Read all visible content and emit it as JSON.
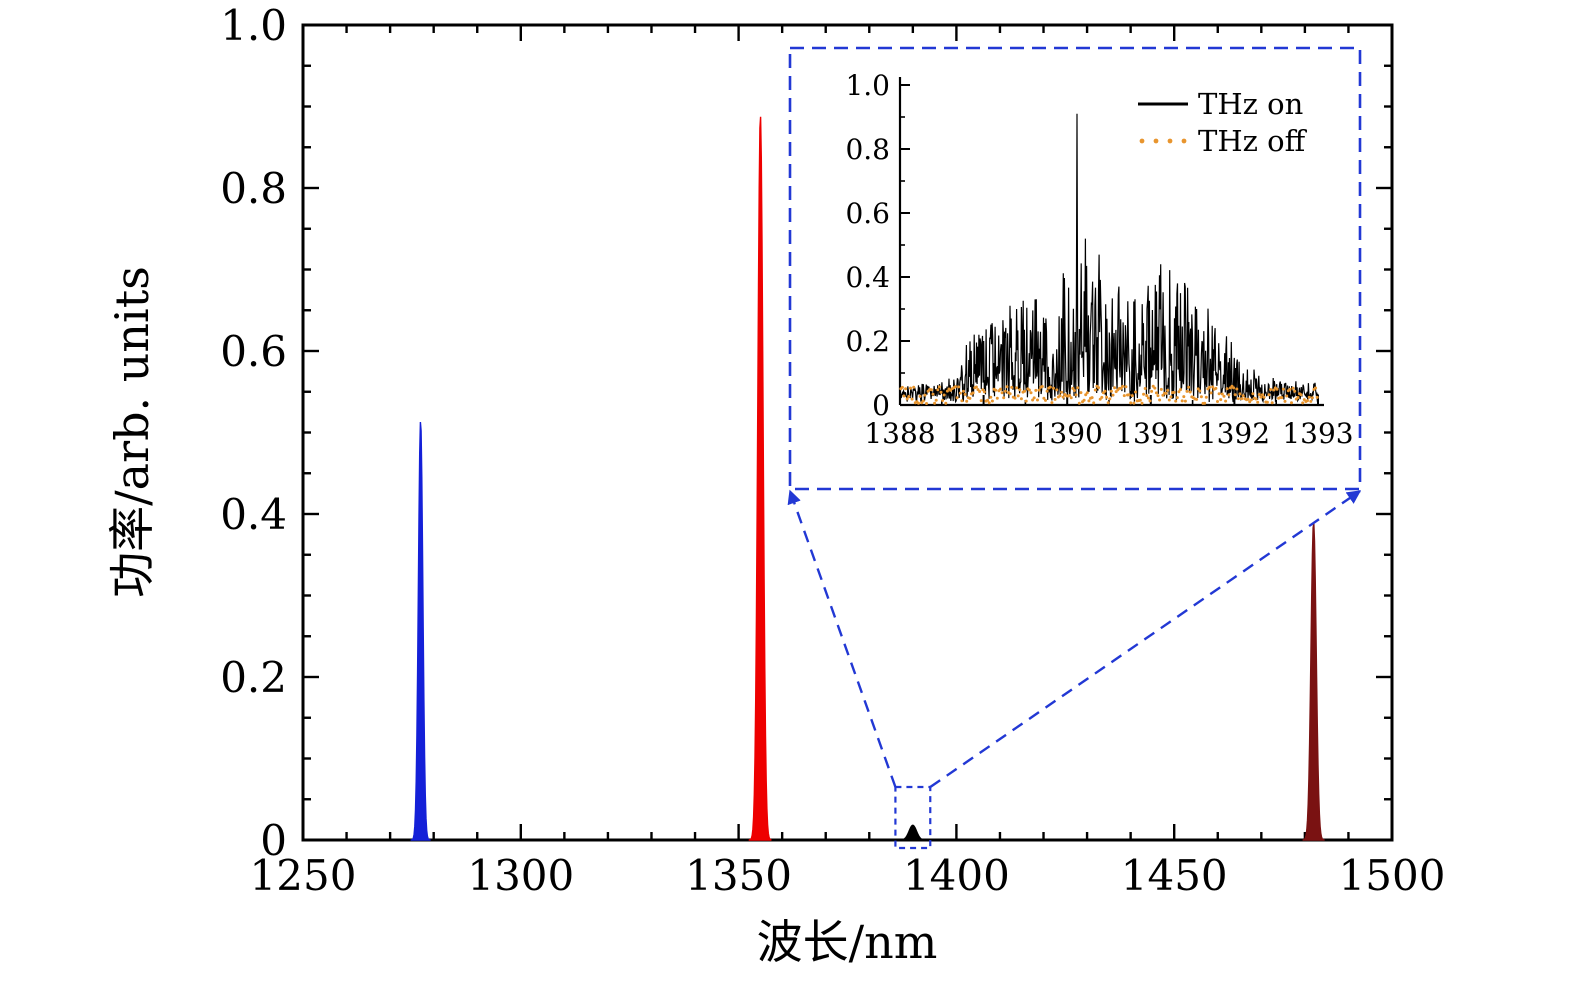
{
  "figure": {
    "background": "#ffffff",
    "description": "Optical spectrum with three strong pump/signal peaks and a weak idler peak at 1390 nm, zoomed in an inset comparing THz on/off."
  },
  "chart_data": {
    "type": "line",
    "main": {
      "xlabel": "波长/nm",
      "ylabel": "功率/arb. units",
      "xlim": [
        1250,
        1500
      ],
      "ylim": [
        0,
        1.0
      ],
      "x_ticks": {
        "values": [
          1250,
          1300,
          1350,
          1400,
          1450,
          1500
        ],
        "labels": [
          "1250",
          "1300",
          "1350",
          "1400",
          "1450",
          "1500"
        ],
        "minor_step": 10
      },
      "y_ticks": {
        "values": [
          0,
          0.2,
          0.4,
          0.6,
          0.8,
          1.0
        ],
        "labels": [
          "0",
          "0.2",
          "0.4",
          "0.6",
          "0.8",
          "1.0"
        ],
        "minor_step": 0.05
      },
      "peaks": [
        {
          "name": "peak-1277nm",
          "center_nm": 1277,
          "height": 0.515,
          "fwhm_nm": 1.2,
          "color": "#1420d8"
        },
        {
          "name": "peak-1355nm",
          "center_nm": 1355,
          "height": 0.89,
          "fwhm_nm": 1.4,
          "color": "#ee0000"
        },
        {
          "name": "peak-1390nm",
          "center_nm": 1390,
          "height": 0.018,
          "fwhm_nm": 2.0,
          "color": "#000000"
        },
        {
          "name": "peak-1482nm",
          "center_nm": 1482,
          "height": 0.39,
          "fwhm_nm": 1.4,
          "color": "#7a1212"
        }
      ]
    },
    "inset": {
      "xlim": [
        1388,
        1393
      ],
      "ylim": [
        0,
        1.0
      ],
      "x_ticks": {
        "values": [
          1388,
          1389,
          1390,
          1391,
          1392,
          1393
        ],
        "labels": [
          "1388",
          "1389",
          "1390",
          "1391",
          "1392",
          "1393"
        ],
        "minor_step": 0.5
      },
      "y_ticks": {
        "values": [
          0,
          0.2,
          0.4,
          0.6,
          0.8,
          1.0
        ],
        "labels": [
          "0",
          "0.2",
          "0.4",
          "0.6",
          "0.8",
          "1.0"
        ],
        "minor_step": 0.1
      },
      "series": [
        {
          "name": "THz on",
          "color": "#000000",
          "style": "solid"
        },
        {
          "name": "THz off",
          "color": "#e8952e",
          "style": "dotted"
        }
      ],
      "thz_on_envelope": [
        [
          1388.0,
          0.03
        ],
        [
          1388.6,
          0.05
        ],
        [
          1388.8,
          0.18
        ],
        [
          1389.0,
          0.22
        ],
        [
          1389.3,
          0.28
        ],
        [
          1389.6,
          0.33
        ],
        [
          1389.9,
          0.38
        ],
        [
          1390.1,
          0.45
        ],
        [
          1390.4,
          0.38
        ],
        [
          1390.7,
          0.33
        ],
        [
          1391.0,
          0.38
        ],
        [
          1391.3,
          0.42
        ],
        [
          1391.6,
          0.3
        ],
        [
          1391.9,
          0.22
        ],
        [
          1392.1,
          0.12
        ],
        [
          1392.4,
          0.05
        ],
        [
          1393.0,
          0.04
        ]
      ],
      "thz_on_spikes": [
        [
          1389.0,
          0.2
        ],
        [
          1389.62,
          0.33
        ],
        [
          1390.12,
          0.91
        ],
        [
          1390.22,
          0.52
        ],
        [
          1390.38,
          0.47
        ],
        [
          1390.62,
          0.37
        ],
        [
          1391.12,
          0.44
        ],
        [
          1391.32,
          0.38
        ],
        [
          1391.55,
          0.3
        ]
      ],
      "thz_off_max": 0.055,
      "noise_seed": 20240915,
      "n_points": 700,
      "n_off_dots": 260
    },
    "callout": {
      "color": "#2238d4",
      "zoom_region_nm": [
        1386,
        1394
      ],
      "zoom_region_top": 0.065
    }
  }
}
